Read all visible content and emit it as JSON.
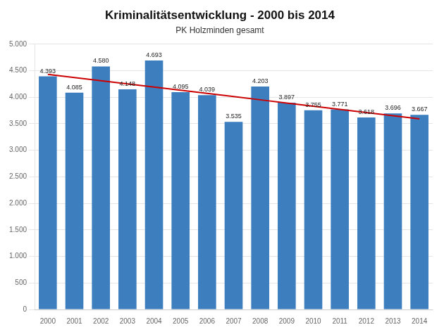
{
  "chart_data": {
    "type": "bar",
    "title": "Kriminalitätsentwicklung - 2000 bis 2014",
    "subtitle": "PK Holzminden gesamt",
    "categories": [
      "2000",
      "2001",
      "2002",
      "2003",
      "2004",
      "2005",
      "2006",
      "2007",
      "2008",
      "2009",
      "2010",
      "2011",
      "2012",
      "2013",
      "2014"
    ],
    "series": [
      {
        "type": "bar",
        "color": "#3d7ebf",
        "values": [
          4393,
          4085,
          4580,
          4148,
          4693,
          4095,
          4039,
          3535,
          4203,
          3897,
          3755,
          3771,
          3618,
          3696,
          3667
        ],
        "value_labels": [
          "4.393",
          "4.085",
          "4.580",
          "4.148",
          "4.693",
          "4.095",
          "4.039",
          "3.535",
          "4.203",
          "3.897",
          "3.755",
          "3.771",
          "3.618",
          "3.696",
          "3.667"
        ]
      },
      {
        "type": "line",
        "color": "#cc0000",
        "values": [
          4431.17,
          4371.24,
          4311.31,
          4251.38,
          4191.45,
          4131.52,
          4071.6,
          4011.67,
          3951.74,
          3891.81,
          3831.88,
          3771.95,
          3712.02,
          3652.1,
          3592.17
        ]
      }
    ],
    "data_labels": true,
    "ylim": [
      0,
      5000
    ],
    "yticks": [
      0,
      500,
      {
        "value": 1000,
        "label": "1.000"
      },
      {
        "value": 1500,
        "label": "1.500"
      },
      {
        "value": 2000,
        "label": "2.000"
      },
      {
        "value": 2500,
        "label": "2.500"
      },
      {
        "value": 3000,
        "label": "3.000"
      },
      {
        "value": 3500,
        "label": "3.500"
      },
      {
        "value": 4000,
        "label": "4.000"
      },
      {
        "value": 4500,
        "label": "4.500"
      },
      {
        "value": 5000,
        "label": "5.000"
      }
    ],
    "grid": true
  }
}
